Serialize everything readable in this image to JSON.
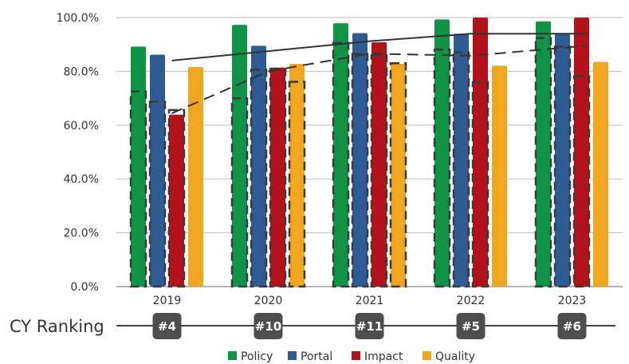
{
  "chart_data": {
    "type": "bar",
    "categories": [
      "2019",
      "2020",
      "2021",
      "2022",
      "2023"
    ],
    "ylim": [
      0,
      100
    ],
    "yticks": [
      "0.0%",
      "20.0%",
      "40.0%",
      "60.0%",
      "80.0%",
      "100.0%"
    ],
    "series": [
      {
        "name": "Policy",
        "color": "#0e9444",
        "values": [
          89.2,
          97.3,
          97.9,
          99.3,
          98.6
        ]
      },
      {
        "name": "Portal",
        "color": "#2e5b94",
        "values": [
          86.2,
          89.5,
          94.2,
          94.0,
          94.0
        ]
      },
      {
        "name": "Impact",
        "color": "#b3121a",
        "values": [
          63.9,
          81.4,
          90.8,
          100.0,
          100.0
        ]
      },
      {
        "name": "Quality",
        "color": "#f0a61e",
        "values": [
          81.6,
          82.8,
          82.8,
          82.1,
          83.5
        ]
      }
    ],
    "dashed_bar_values": [
      [
        72.5,
        68.7,
        65.6,
        0
      ],
      [
        70.0,
        80.6,
        80.9,
        76.1
      ],
      [
        90.6,
        86.5,
        86.0,
        83.0
      ],
      [
        88.1,
        87.0,
        76.0,
        0
      ],
      [
        92.4,
        89.2,
        78.2,
        0
      ]
    ],
    "solid_line": [
      {
        "x": "2019",
        "y": 84.0
      },
      {
        "x": "2021",
        "y": 91.2
      },
      {
        "x": "2022",
        "y": 94.0
      },
      {
        "x": "2023",
        "y": 94.0
      }
    ],
    "dashed_line": [
      {
        "x": "2019",
        "y": 64.4
      },
      {
        "x": "2020",
        "y": 80.0
      },
      {
        "x": "2021",
        "y": 86.6
      },
      {
        "x": "2022",
        "y": 85.8
      },
      {
        "x": "2023",
        "y": 89.5
      }
    ],
    "ranking": {
      "label": "CY Ranking",
      "badges": [
        "#4",
        "#10",
        "#11",
        "#5",
        "#6"
      ],
      "badge_color": "#4d4d4f"
    },
    "legend_position": "bottom",
    "grid": true
  }
}
